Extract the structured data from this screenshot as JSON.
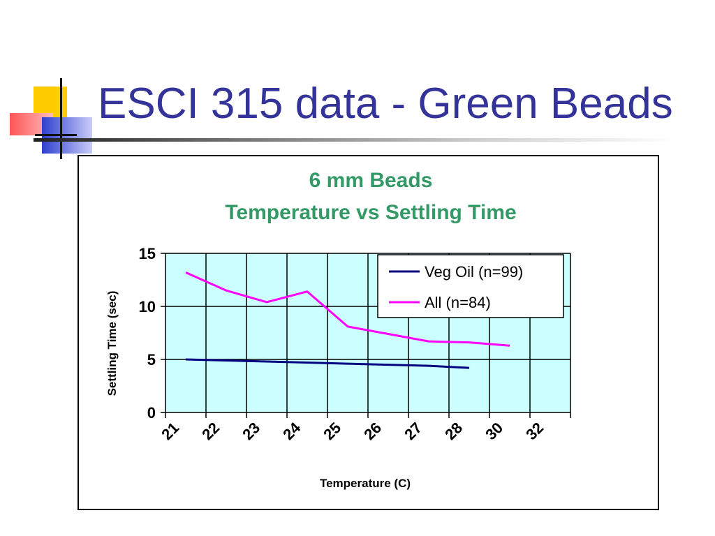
{
  "slide": {
    "title": "ESCI 315 data - Green Beads"
  },
  "colors": {
    "title": "#333399",
    "chart_title": "#339966",
    "plot_bg": "#ccffff",
    "veg_oil": "#000080",
    "all": "#ff00ff"
  },
  "chart_data": {
    "type": "line",
    "title": "6 mm Beads",
    "subtitle": "Temperature vs Settling Time",
    "xlabel": "Temperature (C)",
    "ylabel": "Settling Time (sec)",
    "categories": [
      "21",
      "22",
      "23",
      "24",
      "25",
      "26",
      "27",
      "28",
      "30",
      "32"
    ],
    "ylim": [
      0,
      15
    ],
    "yticks": [
      0,
      5,
      10,
      15
    ],
    "grid": true,
    "legend_position": "top-right",
    "series": [
      {
        "name": "Veg Oil (n=99)",
        "color": "#000080",
        "values": [
          5.0,
          4.9,
          4.8,
          4.7,
          4.6,
          4.5,
          4.4,
          4.2,
          null,
          null
        ]
      },
      {
        "name": "All (n=84)",
        "color": "#ff00ff",
        "values": [
          13.2,
          11.5,
          10.4,
          11.4,
          8.1,
          7.4,
          6.7,
          6.6,
          6.3,
          null
        ]
      }
    ]
  }
}
